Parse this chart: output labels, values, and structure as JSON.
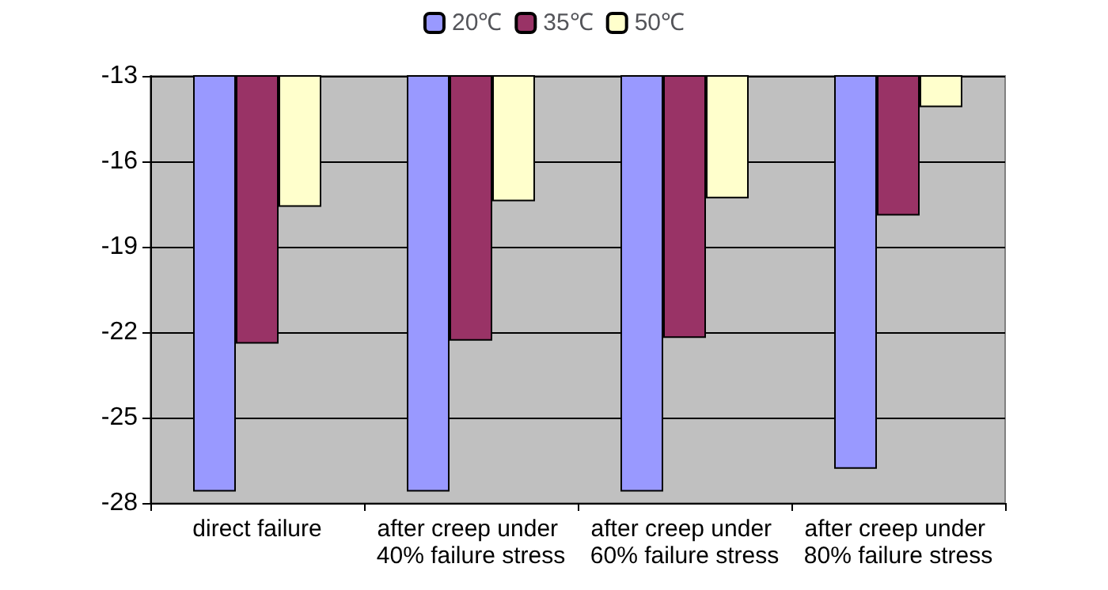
{
  "chart_data": {
    "type": "bar",
    "categories": [
      "direct failure",
      "after creep under 40% failure stress",
      "after creep under 60% failure stress",
      "after creep under 80% failure stress"
    ],
    "series": [
      {
        "name": "20℃",
        "color": "#9999ff",
        "values": [
          -27.6,
          -27.6,
          -27.6,
          -26.8
        ]
      },
      {
        "name": "35℃",
        "color": "#993366",
        "values": [
          -22.4,
          -22.3,
          -22.2,
          -17.9
        ]
      },
      {
        "name": "50℃",
        "color": "#ffffcc",
        "values": [
          -17.6,
          -17.4,
          -17.3,
          -14.1
        ]
      }
    ],
    "ylim": [
      -28,
      -13
    ],
    "yticks": [
      -28,
      -25,
      -22,
      -19,
      -16,
      -13
    ],
    "grid": "y",
    "legend": "top"
  }
}
